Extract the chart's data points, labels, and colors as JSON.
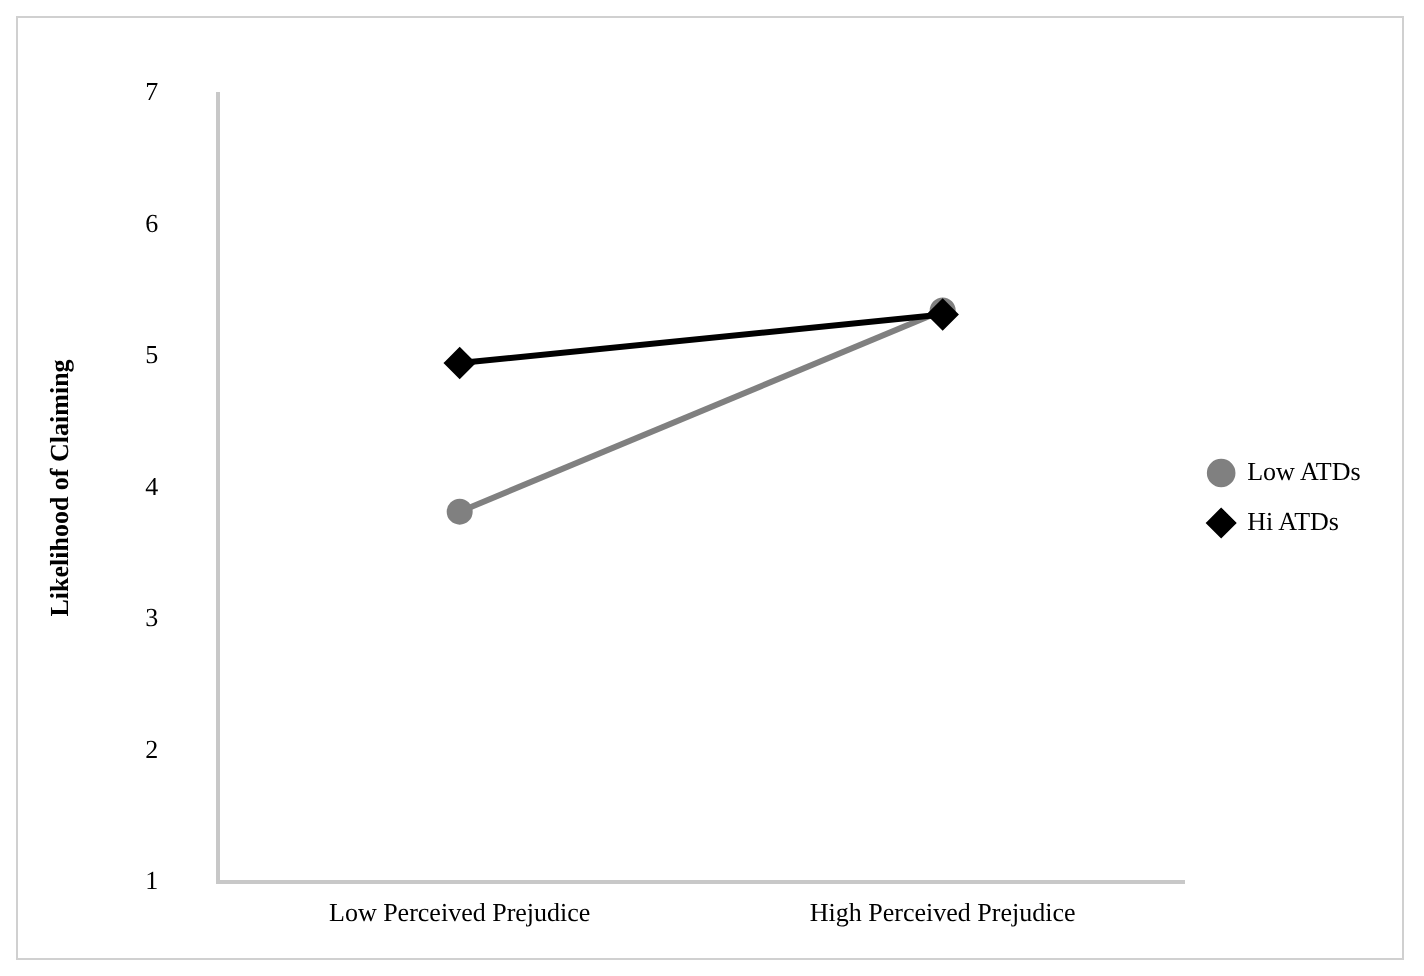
{
  "chart_data": {
    "type": "line",
    "ylabel": "Likelihood of Claiming",
    "categories": [
      "Low Perceived Prejudice",
      "High Perceived Prejudice"
    ],
    "series": [
      {
        "name": "Low ATDs",
        "color": "#808080",
        "marker": "circle",
        "values": [
          3.82,
          5.35
        ]
      },
      {
        "name": "Hi ATDs",
        "color": "#000000",
        "marker": "diamond",
        "values": [
          4.95,
          5.32
        ]
      }
    ],
    "ylim": [
      1,
      7
    ],
    "yticks": [
      1,
      2,
      3,
      4,
      5,
      6,
      7
    ],
    "grid": false,
    "legend": "right"
  }
}
